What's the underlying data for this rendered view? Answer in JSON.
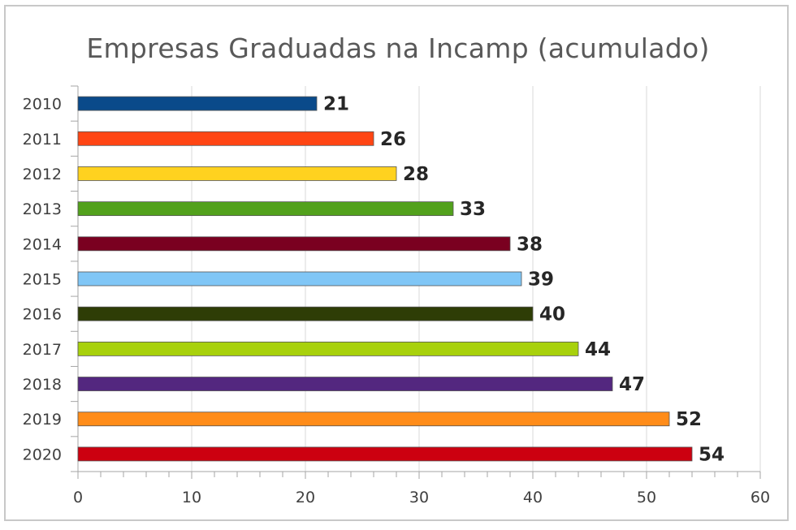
{
  "chart_data": {
    "type": "bar",
    "orientation": "horizontal",
    "title": "Empresas Graduadas na Incamp (acumulado)",
    "xlabel": "",
    "ylabel": "",
    "categories": [
      "2010",
      "2011",
      "2012",
      "2013",
      "2014",
      "2015",
      "2016",
      "2017",
      "2018",
      "2019",
      "2020"
    ],
    "values": [
      21,
      26,
      28,
      33,
      38,
      39,
      40,
      44,
      47,
      52,
      54
    ],
    "colors": [
      "#0a4a8a",
      "#ff4513",
      "#ffd21f",
      "#52a11c",
      "#7a0020",
      "#80c6f6",
      "#2e3d06",
      "#a8d10c",
      "#53277f",
      "#ff8c19",
      "#cc0010"
    ],
    "xlim": [
      0,
      60
    ],
    "xticks": [
      0,
      10,
      20,
      30,
      40,
      50,
      60
    ],
    "grid": true,
    "data_labels": true,
    "legend": "none"
  }
}
